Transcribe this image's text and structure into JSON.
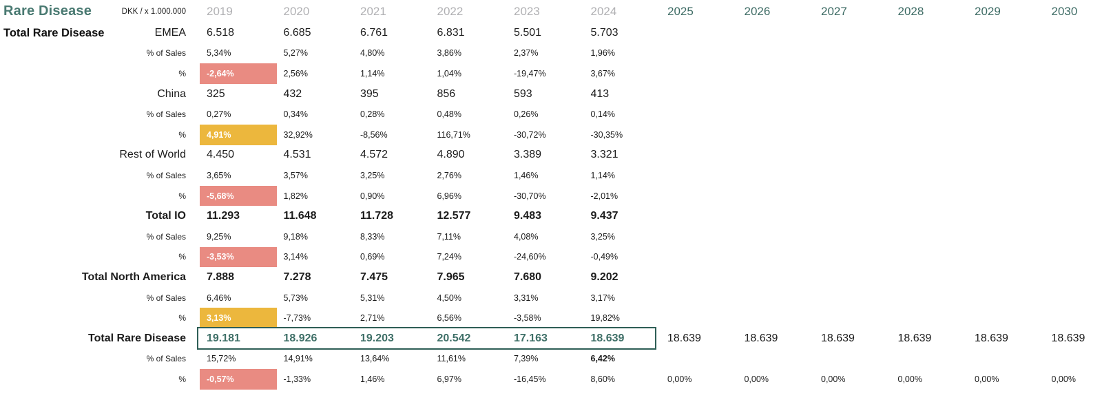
{
  "title": "Rare Disease",
  "unit_label": "DKK / x 1.000.000",
  "section_label": "Total Rare Disease",
  "colors": {
    "teal_title": "#4a7a72",
    "teal_header": "#3d6b64",
    "teal_value": "#3e6f67",
    "teal_border": "#2e5e56",
    "gray_year": "#b0b0b3",
    "fill_red": "#e98b82",
    "fill_yellow": "#ecb73d"
  },
  "years_actual": [
    "2019",
    "2020",
    "2021",
    "2022",
    "2023",
    "2024"
  ],
  "years_forecast": [
    "2025",
    "2026",
    "2027",
    "2028",
    "2029",
    "2030"
  ],
  "rows": [
    {
      "label": "EMEA",
      "kind": "value",
      "bold": false,
      "values": [
        "6.518",
        "6.685",
        "6.761",
        "6.831",
        "5.501",
        "5.703"
      ]
    },
    {
      "label": "% of Sales",
      "kind": "pct",
      "values": [
        "5,34%",
        "5,27%",
        "4,80%",
        "3,86%",
        "2,37%",
        "1,96%"
      ]
    },
    {
      "label": "%",
      "kind": "pct",
      "fill": "red",
      "values": [
        "-2,64%",
        "2,56%",
        "1,14%",
        "1,04%",
        "-19,47%",
        "3,67%"
      ]
    },
    {
      "label": "China",
      "kind": "value",
      "bold": false,
      "values": [
        "325",
        "432",
        "395",
        "856",
        "593",
        "413"
      ]
    },
    {
      "label": "% of Sales",
      "kind": "pct",
      "values": [
        "0,27%",
        "0,34%",
        "0,28%",
        "0,48%",
        "0,26%",
        "0,14%"
      ]
    },
    {
      "label": "%",
      "kind": "pct",
      "fill": "yellow",
      "values": [
        "4,91%",
        "32,92%",
        "-8,56%",
        "116,71%",
        "-30,72%",
        "-30,35%"
      ]
    },
    {
      "label": "Rest of World",
      "kind": "value",
      "bold": false,
      "values": [
        "4.450",
        "4.531",
        "4.572",
        "4.890",
        "3.389",
        "3.321"
      ]
    },
    {
      "label": "% of Sales",
      "kind": "pct",
      "values": [
        "3,65%",
        "3,57%",
        "3,25%",
        "2,76%",
        "1,46%",
        "1,14%"
      ]
    },
    {
      "label": "%",
      "kind": "pct",
      "fill": "red",
      "values": [
        "-5,68%",
        "1,82%",
        "0,90%",
        "6,96%",
        "-30,70%",
        "-2,01%"
      ]
    },
    {
      "label": "Total IO",
      "kind": "value",
      "bold": true,
      "values": [
        "11.293",
        "11.648",
        "11.728",
        "12.577",
        "9.483",
        "9.437"
      ]
    },
    {
      "label": "% of Sales",
      "kind": "pct",
      "values": [
        "9,25%",
        "9,18%",
        "8,33%",
        "7,11%",
        "4,08%",
        "3,25%"
      ]
    },
    {
      "label": "%",
      "kind": "pct",
      "fill": "red",
      "values": [
        "-3,53%",
        "3,14%",
        "0,69%",
        "7,24%",
        "-24,60%",
        "-0,49%"
      ]
    },
    {
      "label": "Total North America",
      "kind": "value",
      "bold": true,
      "values": [
        "7.888",
        "7.278",
        "7.475",
        "7.965",
        "7.680",
        "9.202"
      ]
    },
    {
      "label": "% of Sales",
      "kind": "pct",
      "values": [
        "6,46%",
        "5,73%",
        "5,31%",
        "4,50%",
        "3,31%",
        "3,17%"
      ]
    },
    {
      "label": "%",
      "kind": "pct",
      "fill": "yellow",
      "values": [
        "3,13%",
        "-7,73%",
        "2,71%",
        "6,56%",
        "-3,58%",
        "19,82%"
      ]
    },
    {
      "label": "Total Rare Disease",
      "kind": "value",
      "bold": true,
      "accent": true,
      "boxed": true,
      "values": [
        "19.181",
        "18.926",
        "19.203",
        "20.542",
        "17.163",
        "18.639"
      ],
      "forecast_values": [
        "18.639",
        "18.639",
        "18.639",
        "18.639",
        "18.639",
        "18.639"
      ]
    },
    {
      "label": "% of Sales",
      "kind": "pct",
      "bold_last": true,
      "values": [
        "15,72%",
        "14,91%",
        "13,64%",
        "11,61%",
        "7,39%",
        "6,42%"
      ]
    },
    {
      "label": "%",
      "kind": "pct",
      "fill": "red",
      "values": [
        "-0,57%",
        "-1,33%",
        "1,46%",
        "6,97%",
        "-16,45%",
        "8,60%"
      ],
      "forecast_values": [
        "0,00%",
        "0,00%",
        "0,00%",
        "0,00%",
        "0,00%",
        "0,00%"
      ]
    }
  ]
}
